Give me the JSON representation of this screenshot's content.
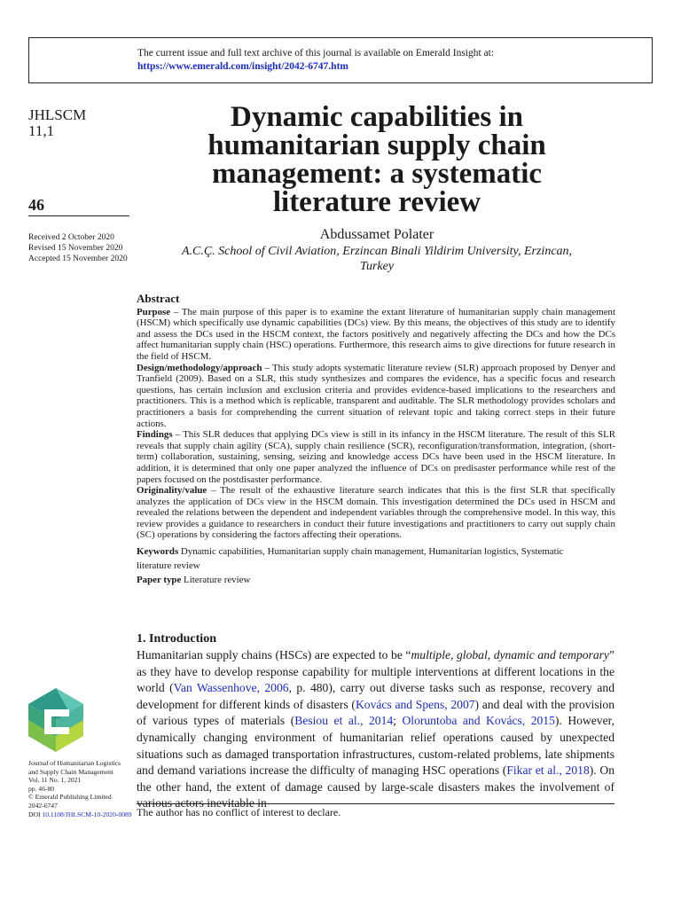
{
  "notice": {
    "line1": "The current issue and full text archive of this journal is available on Emerald Insight at:",
    "url": "https://www.emerald.com/insight/2042-6747.htm"
  },
  "journal": {
    "abbr": "JHLSCM",
    "volume": "11,1",
    "page": "46",
    "received": "Received 2 October 2020",
    "revised": "Revised 15 November 2020",
    "accepted": "Accepted 15 November 2020"
  },
  "title": "Dynamic capabilities in humanitarian supply chain management: a systematic literature review",
  "author": "Abdussamet Polater",
  "affiliation": "A.C.Ç. School of Civil Aviation, Erzincan Binali Yildirim University, Erzincan, Turkey",
  "abstract": {
    "heading": "Abstract",
    "purpose_label": "Purpose",
    "purpose": " – The main purpose of this paper is to examine the extant literature of humanitarian supply chain management (HSCM) which specifically use dynamic capabilities (DCs) view. By this means, the objectives of this study are to identify and assess the DCs used in the HSCM context, the factors positively and negatively affecting the DCs and how the DCs affect humanitarian supply chain (HSC) operations. Furthermore, this research aims to give directions for future research in the field of HSCM.",
    "design_label": "Design/methodology/approach",
    "design": " – This study adopts systematic literature review (SLR) approach proposed by Denyer and Tranfield (2009). Based on a SLR, this study synthesizes and compares the evidence, has a specific focus and research questions, has certain inclusion and exclusion criteria and provides evidence-based implications to the researchers and practitioners. This is a method which is replicable, transparent and auditable. The SLR methodology provides scholars and practitioners a basis for comprehending the current situation of relevant topic and taking correct steps in their future actions.",
    "findings_label": "Findings",
    "findings": " – This SLR deduces that applying DCs view is still in its infancy in the HSCM literature. The result of this SLR reveals that supply chain agility (SCA), supply chain resilience (SCR), reconfiguration/transformation, integration, (short-term) collaboration, sustaining, sensing, seizing and knowledge access DCs have been used in the HSCM literature. In addition, it is determined that only one paper analyzed the influence of DCs on predisaster performance while rest of the papers focused on the postdisaster performance.",
    "originality_label": "Originality/value",
    "originality": " – The result of the exhaustive literature search indicates that this is the first SLR that specifically analyzes the application of DCs view in the HSCM domain. This investigation determined the DCs used in HSCM and revealed the relations between the dependent and independent variables through the comprehensive model. In this way, this review provides a guidance to researchers in conduct their future investigations and practitioners to carry out supply chain (SC) operations by considering the factors affecting their operations.",
    "keywords_label": "Keywords",
    "keywords": " Dynamic capabilities, Humanitarian supply chain management, Humanitarian logistics, Systematic literature review",
    "papertype_label": "Paper type",
    "papertype": " Literature review"
  },
  "intro": {
    "heading": "1. Introduction",
    "t1": "Humanitarian supply chains (HSCs) are expected to be “",
    "t1i": "multiple, global, dynamic and temporary",
    "t2": "” as they have to develop response capability for multiple interventions at different locations in the world (",
    "c1": "Van Wassenhove, 2006",
    "t3": ", p. 480), carry out diverse tasks such as response, recovery and development for different kinds of disasters (",
    "c2": "Kovács and Spens, 2007",
    "t4": ") and deal with the provision of various types of materials (",
    "c3": "Besiou et al., 2014",
    "t5": "; ",
    "c4": "Oloruntoba and Kovács, 2015",
    "t6": "). However, dynamically changing environment of humanitarian relief operations caused by unexpected situations such as damaged transportation infrastructures, custom-related problems, late shipments and demand variations increase the difficulty of managing HSC operations (",
    "c5": "Fikar et al., 2018",
    "t7": "). On the other hand, the extent of damage caused by large-scale disasters makes the involvement of various actors inevitable in"
  },
  "footnote": "The author has no conflict of interest to declare.",
  "journal_info": {
    "name1": "Journal of Humanitarian Logistics",
    "name2": "and Supply Chain Management",
    "vol": "Vol. 11 No. 1, 2021",
    "pp": "pp. 46-80",
    "copyright": "© Emerald Publishing Limited",
    "issn": "2042-6747",
    "doi_label": "DOI",
    "doi": "10.1108/JHLSCM-10-2020-0089"
  },
  "colors": {
    "link": "#1a2bd6"
  }
}
